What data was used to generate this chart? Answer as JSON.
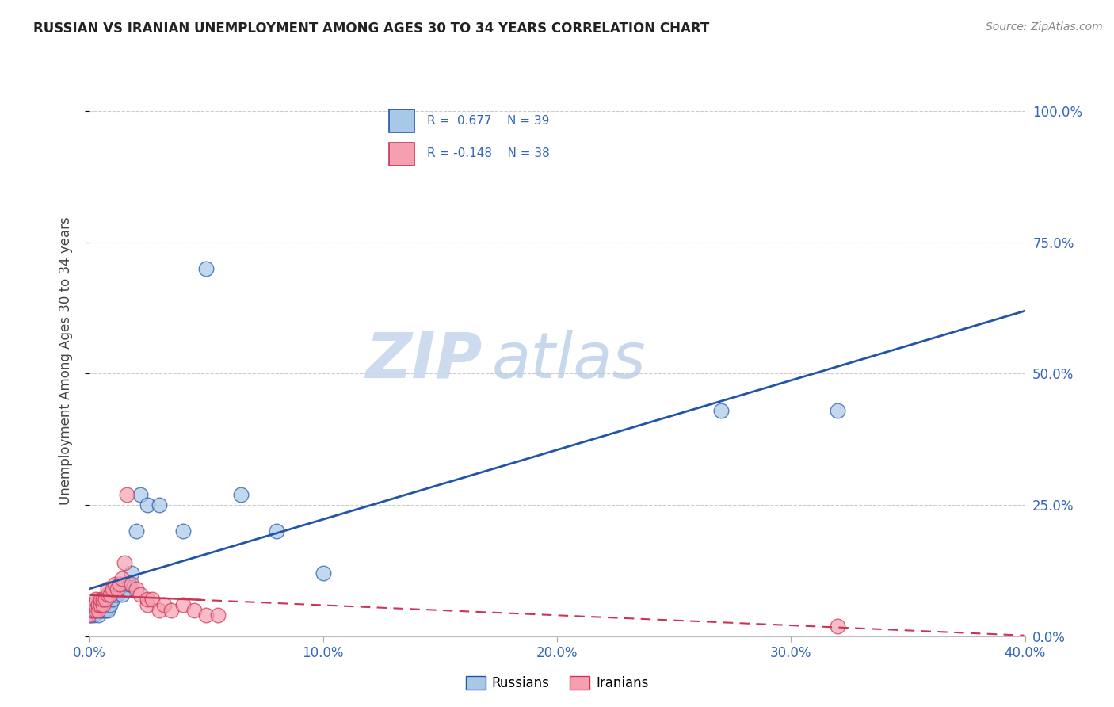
{
  "title": "RUSSIAN VS IRANIAN UNEMPLOYMENT AMONG AGES 30 TO 34 YEARS CORRELATION CHART",
  "source": "Source: ZipAtlas.com",
  "ylabel": "Unemployment Among Ages 30 to 34 years",
  "xlim": [
    0.0,
    0.4
  ],
  "ylim": [
    0.0,
    1.05
  ],
  "russian_color": "#a8c8e8",
  "iranian_color": "#f4a0b0",
  "russian_line_color": "#2255aa",
  "iranian_line_color": "#cc3355",
  "watermark_zip": "ZIP",
  "watermark_atlas": "atlas",
  "russians_x": [
    0.0,
    0.001,
    0.001,
    0.002,
    0.002,
    0.003,
    0.003,
    0.004,
    0.004,
    0.005,
    0.005,
    0.006,
    0.006,
    0.007,
    0.007,
    0.008,
    0.008,
    0.009,
    0.009,
    0.01,
    0.011,
    0.012,
    0.013,
    0.014,
    0.015,
    0.016,
    0.017,
    0.018,
    0.02,
    0.022,
    0.025,
    0.03,
    0.04,
    0.05,
    0.065,
    0.08,
    0.1,
    0.27,
    0.32
  ],
  "russians_y": [
    0.04,
    0.04,
    0.05,
    0.04,
    0.05,
    0.05,
    0.06,
    0.04,
    0.06,
    0.05,
    0.06,
    0.05,
    0.06,
    0.05,
    0.07,
    0.05,
    0.07,
    0.06,
    0.08,
    0.07,
    0.08,
    0.08,
    0.09,
    0.08,
    0.1,
    0.09,
    0.1,
    0.12,
    0.2,
    0.27,
    0.25,
    0.25,
    0.2,
    0.7,
    0.27,
    0.2,
    0.12,
    0.43,
    0.43
  ],
  "iranians_x": [
    0.0,
    0.001,
    0.001,
    0.002,
    0.002,
    0.003,
    0.003,
    0.004,
    0.004,
    0.005,
    0.005,
    0.006,
    0.006,
    0.007,
    0.008,
    0.008,
    0.009,
    0.01,
    0.011,
    0.012,
    0.013,
    0.014,
    0.015,
    0.016,
    0.018,
    0.02,
    0.022,
    0.025,
    0.025,
    0.027,
    0.03,
    0.032,
    0.035,
    0.04,
    0.045,
    0.05,
    0.055,
    0.32
  ],
  "iranians_y": [
    0.04,
    0.05,
    0.06,
    0.05,
    0.06,
    0.05,
    0.07,
    0.05,
    0.06,
    0.06,
    0.07,
    0.06,
    0.07,
    0.07,
    0.08,
    0.09,
    0.08,
    0.09,
    0.1,
    0.09,
    0.1,
    0.11,
    0.14,
    0.27,
    0.1,
    0.09,
    0.08,
    0.06,
    0.07,
    0.07,
    0.05,
    0.06,
    0.05,
    0.06,
    0.05,
    0.04,
    0.04,
    0.02
  ]
}
